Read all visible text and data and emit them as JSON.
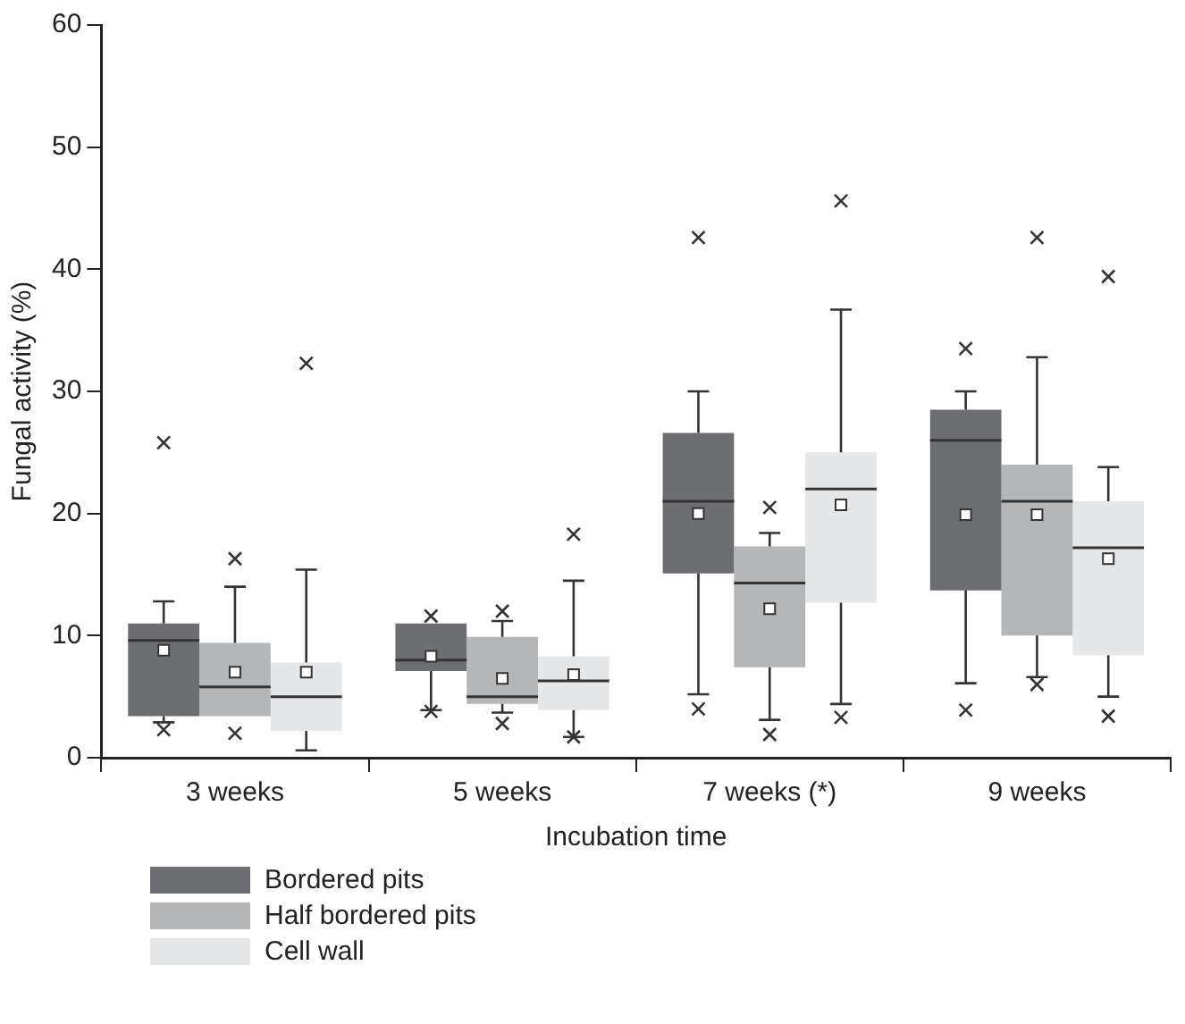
{
  "chart_data": {
    "type": "box",
    "xlabel": "Incubation time",
    "ylabel": "Fungal activity (%)",
    "categories": [
      "3 weeks",
      "5 weeks",
      "7 weeks (*)",
      "9 weeks"
    ],
    "ylim": [
      0,
      60
    ],
    "yticks": [
      0,
      10,
      20,
      30,
      40,
      50,
      60
    ],
    "grid": false,
    "legend": "bottom left",
    "series": [
      {
        "name": "Bordered pits",
        "color": "#6d6e71",
        "boxes": [
          {
            "low": 2.9,
            "q1": 3.4,
            "median": 9.6,
            "q3": 11,
            "high": 12.8,
            "mean": 8.8,
            "outliers": [
              25.8,
              2.3
            ]
          },
          {
            "low": 3.9,
            "q1": 7.1,
            "median": 8,
            "q3": 11,
            "high": 11,
            "mean": 8.3,
            "outliers": [
              11.6,
              3.8
            ]
          },
          {
            "low": 5.2,
            "q1": 15.1,
            "median": 21,
            "q3": 26.6,
            "high": 30,
            "mean": 20,
            "outliers": [
              42.6,
              4
            ]
          },
          {
            "low": 6.1,
            "q1": 13.7,
            "median": 26,
            "q3": 28.5,
            "high": 30,
            "mean": 19.9,
            "outliers": [
              33.5,
              3.9
            ]
          }
        ]
      },
      {
        "name": "Half bordered pits",
        "color": "#b5b6b8",
        "boxes": [
          {
            "low": 3.4,
            "q1": 3.4,
            "median": 5.8,
            "q3": 9.4,
            "high": 14,
            "mean": 7,
            "outliers": [
              16.3,
              2
            ]
          },
          {
            "low": 3.7,
            "q1": 4.4,
            "median": 5,
            "q3": 9.9,
            "high": 11.2,
            "mean": 6.5,
            "outliers": [
              12,
              2.8
            ]
          },
          {
            "low": 3.1,
            "q1": 7.4,
            "median": 14.3,
            "q3": 17.3,
            "high": 18.4,
            "mean": 12.2,
            "outliers": [
              20.5,
              1.9
            ]
          },
          {
            "low": 6.6,
            "q1": 10,
            "median": 21,
            "q3": 24,
            "high": 32.8,
            "mean": 19.9,
            "outliers": [
              42.6,
              6
            ]
          }
        ]
      },
      {
        "name": "Cell wall",
        "color": "#e6e7e8",
        "boxes": [
          {
            "low": 0.6,
            "q1": 2.2,
            "median": 5,
            "q3": 7.8,
            "high": 15.4,
            "mean": 7,
            "outliers": [
              32.3
            ]
          },
          {
            "low": 1.7,
            "q1": 3.9,
            "median": 6.3,
            "q3": 8.3,
            "high": 14.5,
            "mean": 6.8,
            "outliers": [
              18.3,
              1.7
            ]
          },
          {
            "low": 4.4,
            "q1": 12.7,
            "median": 22,
            "q3": 25,
            "high": 36.7,
            "mean": 20.7,
            "outliers": [
              45.6,
              3.3
            ]
          },
          {
            "low": 5,
            "q1": 8.4,
            "median": 17.2,
            "q3": 21,
            "high": 23.8,
            "mean": 16.3,
            "outliers": [
              39.4,
              3.4
            ]
          }
        ]
      }
    ]
  }
}
